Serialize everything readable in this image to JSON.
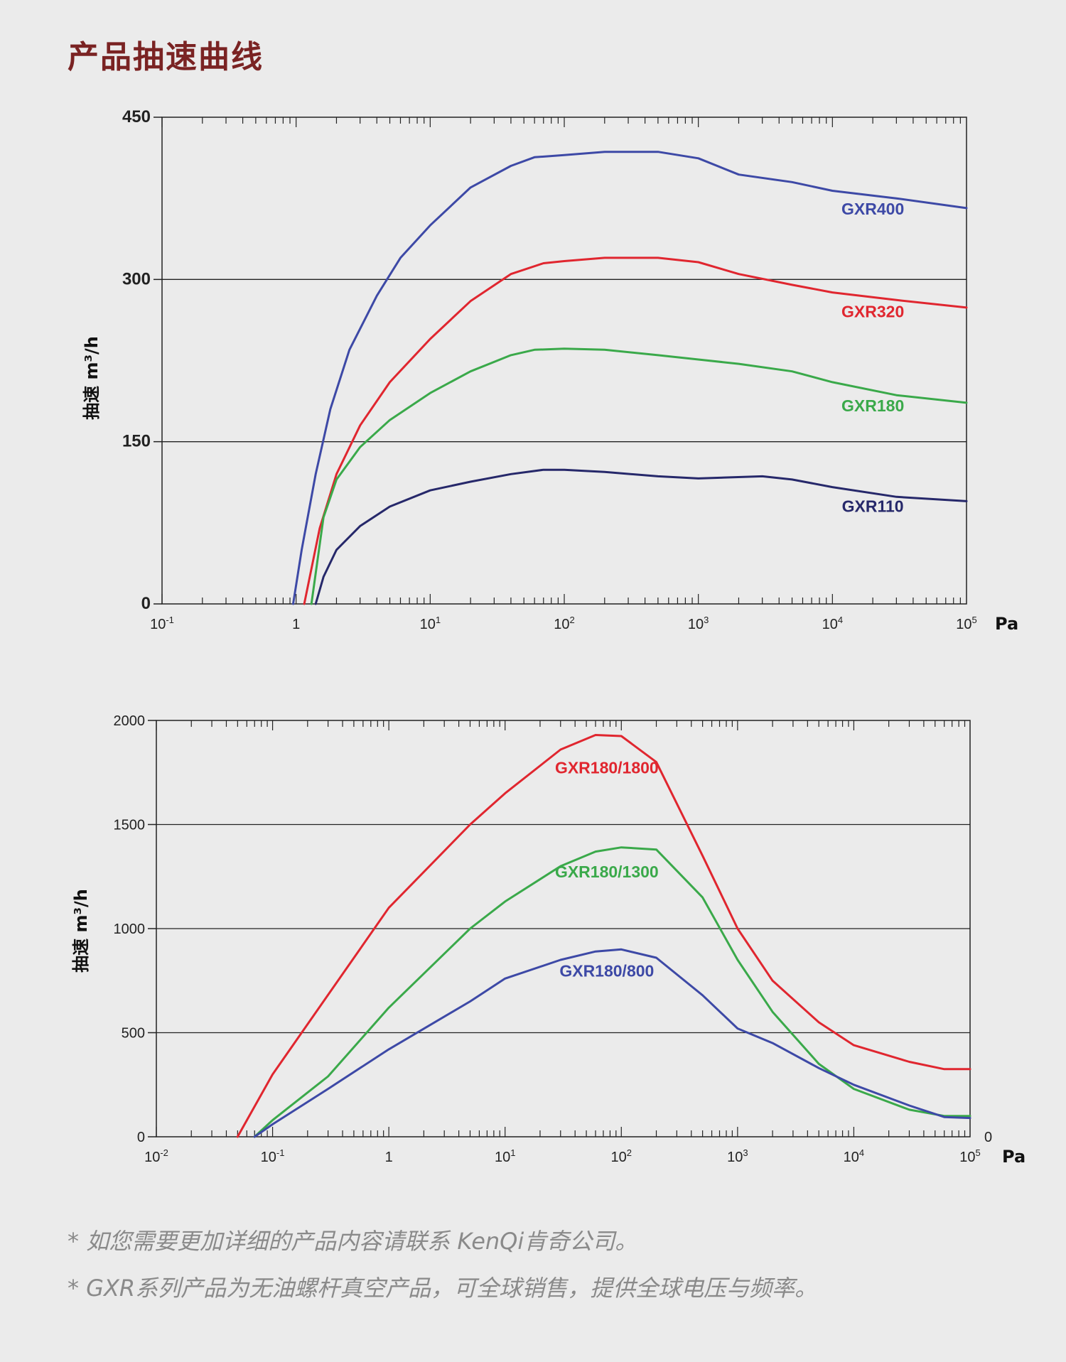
{
  "page_title": "产品抽速曲线",
  "notes": [
    "* 如您需要更加详细的产品内容请联系 KenQi肯奇公司。",
    "* GXR系列产品为无油螺杆真空产品，可全球销售，提供全球电压与频率。"
  ],
  "chart_data": [
    {
      "type": "line",
      "title": "",
      "xscale": "log",
      "xlim": [
        0.1,
        100000
      ],
      "ylim": [
        0,
        450
      ],
      "xlabel": "Pa",
      "ylabel": "抽速 m³/h",
      "y_ticks": [
        "0",
        "150",
        "300",
        "450"
      ],
      "x_ticks": [
        {
          "base": "10",
          "exp": "-1"
        },
        {
          "base": "1",
          "exp": ""
        },
        {
          "base": "10",
          "exp": "1"
        },
        {
          "base": "10",
          "exp": "2"
        },
        {
          "base": "10",
          "exp": "3"
        },
        {
          "base": "10",
          "exp": "4"
        },
        {
          "base": "10",
          "exp": "5"
        }
      ],
      "gridlines_y": [
        150,
        300
      ],
      "series": [
        {
          "name": "GXR400",
          "color": "#3d49a6",
          "label_pos": [
            20000,
            360
          ],
          "points": [
            [
              0.95,
              0
            ],
            [
              1.1,
              50
            ],
            [
              1.4,
              120
            ],
            [
              1.8,
              180
            ],
            [
              2.5,
              235
            ],
            [
              4,
              285
            ],
            [
              6,
              320
            ],
            [
              10,
              350
            ],
            [
              20,
              385
            ],
            [
              40,
              405
            ],
            [
              60,
              413
            ],
            [
              100,
              415
            ],
            [
              200,
              418
            ],
            [
              500,
              418
            ],
            [
              1000,
              412
            ],
            [
              2000,
              397
            ],
            [
              5000,
              390
            ],
            [
              10000,
              382
            ],
            [
              30000,
              375
            ],
            [
              100000,
              366
            ]
          ]
        },
        {
          "name": "GXR320",
          "color": "#e0262f",
          "label_pos": [
            20000,
            265
          ],
          "points": [
            [
              1.15,
              0
            ],
            [
              1.5,
              70
            ],
            [
              2,
              120
            ],
            [
              3,
              165
            ],
            [
              5,
              205
            ],
            [
              10,
              245
            ],
            [
              20,
              280
            ],
            [
              40,
              305
            ],
            [
              70,
              315
            ],
            [
              100,
              317
            ],
            [
              200,
              320
            ],
            [
              500,
              320
            ],
            [
              1000,
              316
            ],
            [
              2000,
              305
            ],
            [
              5000,
              295
            ],
            [
              10000,
              288
            ],
            [
              30000,
              281
            ],
            [
              100000,
              274
            ]
          ]
        },
        {
          "name": "GXR180",
          "color": "#3aa94a",
          "label_pos": [
            20000,
            178
          ],
          "points": [
            [
              1.3,
              0
            ],
            [
              1.6,
              80
            ],
            [
              2,
              115
            ],
            [
              3,
              145
            ],
            [
              5,
              170
            ],
            [
              10,
              195
            ],
            [
              20,
              215
            ],
            [
              40,
              230
            ],
            [
              60,
              235
            ],
            [
              100,
              236
            ],
            [
              200,
              235
            ],
            [
              500,
              230
            ],
            [
              1000,
              226
            ],
            [
              2000,
              222
            ],
            [
              5000,
              215
            ],
            [
              10000,
              205
            ],
            [
              30000,
              193
            ],
            [
              100000,
              186
            ]
          ]
        },
        {
          "name": "GXR110",
          "color": "#26286a",
          "label_pos": [
            20000,
            85
          ],
          "points": [
            [
              1.4,
              0
            ],
            [
              1.6,
              25
            ],
            [
              2,
              50
            ],
            [
              3,
              72
            ],
            [
              5,
              90
            ],
            [
              10,
              105
            ],
            [
              20,
              113
            ],
            [
              40,
              120
            ],
            [
              70,
              124
            ],
            [
              100,
              124
            ],
            [
              200,
              122
            ],
            [
              500,
              118
            ],
            [
              1000,
              116
            ],
            [
              3000,
              118
            ],
            [
              5000,
              115
            ],
            [
              10000,
              108
            ],
            [
              30000,
              99
            ],
            [
              100000,
              95
            ]
          ]
        }
      ]
    },
    {
      "type": "line",
      "title": "",
      "xscale": "log",
      "xlim": [
        0.01,
        100000
      ],
      "ylim": [
        0,
        2000
      ],
      "xlabel": "Pa",
      "ylabel": "抽速 m³/h",
      "y_ticks": [
        "0",
        "500",
        "1000",
        "1500",
        "2000"
      ],
      "right_zero": "0",
      "x_ticks": [
        {
          "base": "10",
          "exp": "-2"
        },
        {
          "base": "10",
          "exp": "-1"
        },
        {
          "base": "1",
          "exp": ""
        },
        {
          "base": "10",
          "exp": "1"
        },
        {
          "base": "10",
          "exp": "2"
        },
        {
          "base": "10",
          "exp": "3"
        },
        {
          "base": "10",
          "exp": "4"
        },
        {
          "base": "10",
          "exp": "5"
        }
      ],
      "gridlines_y": [
        500,
        1000,
        1500
      ],
      "series": [
        {
          "name": "GXR180/1800",
          "color": "#e0262f",
          "label_pos": [
            75,
            1745
          ],
          "points": [
            [
              0.05,
              0
            ],
            [
              0.1,
              300
            ],
            [
              1,
              1100
            ],
            [
              5,
              1500
            ],
            [
              10,
              1650
            ],
            [
              30,
              1860
            ],
            [
              60,
              1930
            ],
            [
              100,
              1925
            ],
            [
              200,
              1800
            ],
            [
              500,
              1350
            ],
            [
              1000,
              1000
            ],
            [
              2000,
              750
            ],
            [
              5000,
              550
            ],
            [
              10000,
              440
            ],
            [
              30000,
              360
            ],
            [
              60000,
              325
            ],
            [
              100000,
              325
            ]
          ]
        },
        {
          "name": "GXR180/1300",
          "color": "#3aa94a",
          "label_pos": [
            75,
            1245
          ],
          "points": [
            [
              0.07,
              0
            ],
            [
              0.1,
              80
            ],
            [
              0.3,
              290
            ],
            [
              1,
              620
            ],
            [
              5,
              1000
            ],
            [
              10,
              1130
            ],
            [
              30,
              1300
            ],
            [
              60,
              1370
            ],
            [
              100,
              1390
            ],
            [
              200,
              1380
            ],
            [
              500,
              1150
            ],
            [
              1000,
              850
            ],
            [
              2000,
              600
            ],
            [
              5000,
              350
            ],
            [
              10000,
              230
            ],
            [
              30000,
              130
            ],
            [
              60000,
              100
            ],
            [
              100000,
              100
            ]
          ]
        },
        {
          "name": "GXR180/800",
          "color": "#3d49a6",
          "label_pos": [
            75,
            770
          ],
          "points": [
            [
              0.07,
              0
            ],
            [
              0.1,
              60
            ],
            [
              0.3,
              230
            ],
            [
              1,
              420
            ],
            [
              5,
              650
            ],
            [
              10,
              760
            ],
            [
              30,
              850
            ],
            [
              60,
              890
            ],
            [
              100,
              900
            ],
            [
              200,
              860
            ],
            [
              500,
              680
            ],
            [
              1000,
              520
            ],
            [
              2000,
              450
            ],
            [
              5000,
              330
            ],
            [
              10000,
              250
            ],
            [
              30000,
              150
            ],
            [
              60000,
              95
            ],
            [
              100000,
              90
            ]
          ]
        }
      ]
    }
  ]
}
